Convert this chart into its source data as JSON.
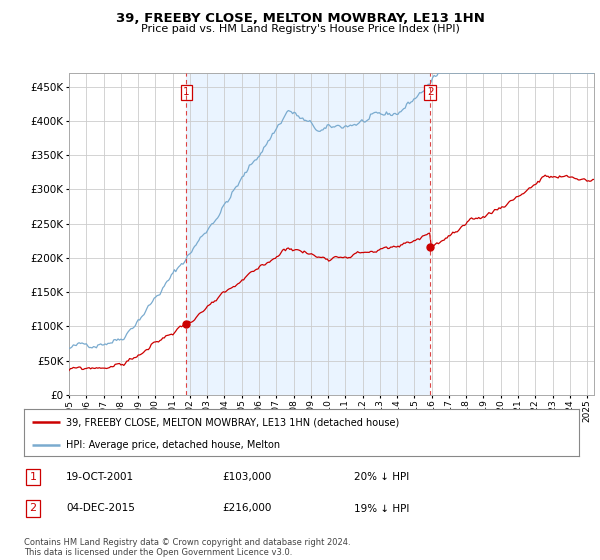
{
  "title": "39, FREEBY CLOSE, MELTON MOWBRAY, LE13 1HN",
  "subtitle": "Price paid vs. HM Land Registry's House Price Index (HPI)",
  "ytick_values": [
    0,
    50000,
    100000,
    150000,
    200000,
    250000,
    300000,
    350000,
    400000,
    450000
  ],
  "ylim": [
    0,
    470000
  ],
  "xlim_start": 1995.0,
  "xlim_end": 2025.4,
  "red_line_color": "#cc0000",
  "blue_line_color": "#7aabcf",
  "fill_color": "#ddeeff",
  "point1_x": 2001.8,
  "point1_y": 103000,
  "point2_x": 2015.92,
  "point2_y": 216000,
  "vline1_x": 2001.8,
  "vline2_x": 2015.92,
  "legend_label_red": "39, FREEBY CLOSE, MELTON MOWBRAY, LE13 1HN (detached house)",
  "legend_label_blue": "HPI: Average price, detached house, Melton",
  "table_rows": [
    {
      "num": "1",
      "date": "19-OCT-2001",
      "price": "£103,000",
      "hpi": "20% ↓ HPI"
    },
    {
      "num": "2",
      "date": "04-DEC-2015",
      "price": "£216,000",
      "hpi": "19% ↓ HPI"
    }
  ],
  "footer": "Contains HM Land Registry data © Crown copyright and database right 2024.\nThis data is licensed under the Open Government Licence v3.0.",
  "background_color": "#ffffff",
  "grid_color": "#cccccc",
  "x_tick_years": [
    1995,
    1996,
    1997,
    1998,
    1999,
    2000,
    2001,
    2002,
    2003,
    2004,
    2005,
    2006,
    2007,
    2008,
    2009,
    2010,
    2011,
    2012,
    2013,
    2014,
    2015,
    2016,
    2017,
    2018,
    2019,
    2020,
    2021,
    2022,
    2023,
    2024,
    2025
  ]
}
